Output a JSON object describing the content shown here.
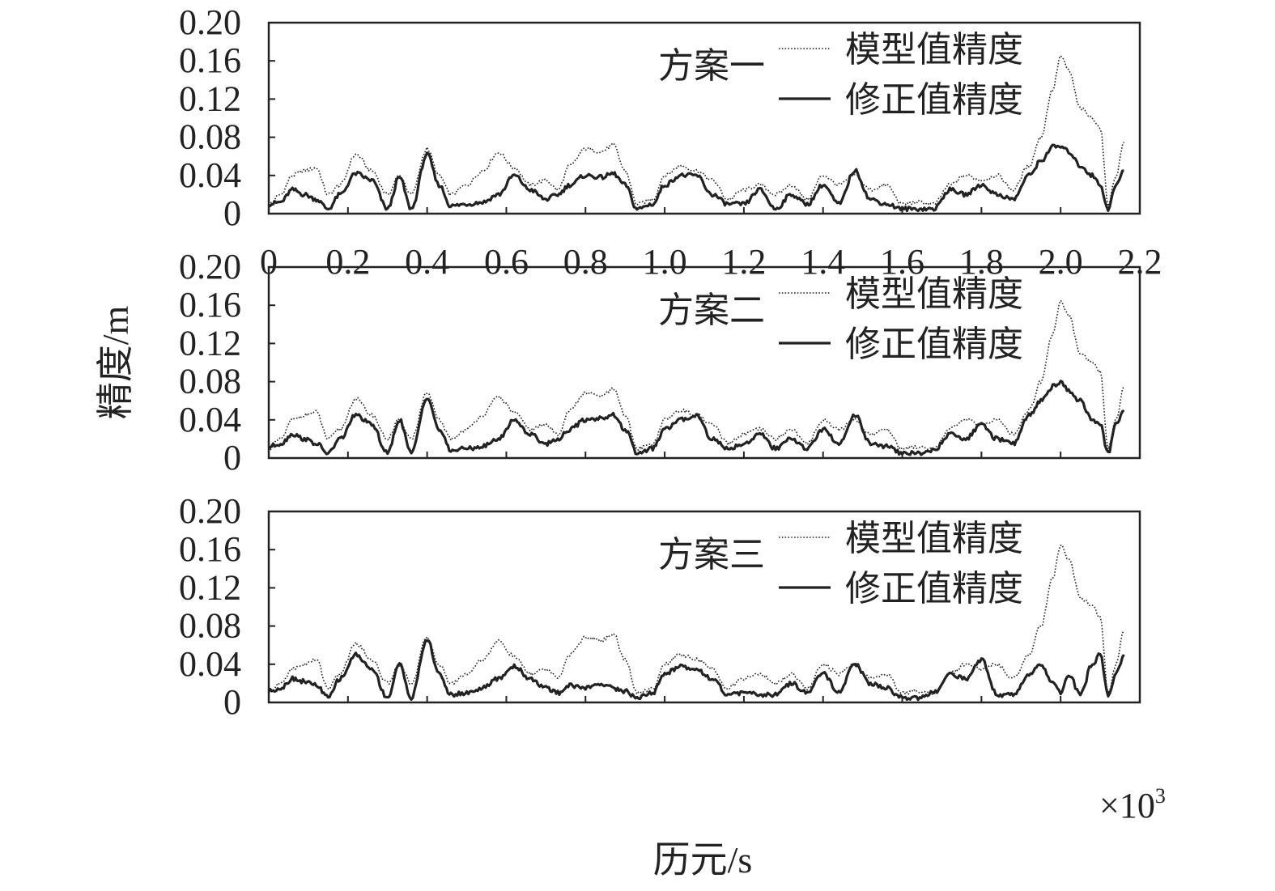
{
  "figure": {
    "ylabel": "精度/m",
    "xlabel": "历元/s",
    "x_multiplier": "×10",
    "x_multiplier_exp": "3"
  },
  "chart_data": [
    {
      "type": "line",
      "title": "方案一",
      "xlabel": "历元/s",
      "ylabel": "精度/m",
      "xlim": [
        0,
        2.2
      ],
      "ylim": [
        0,
        0.2
      ],
      "x_scale": "×10^3",
      "xticks": [
        0,
        0.2,
        0.4,
        0.6,
        0.8,
        1.0,
        1.2,
        1.4,
        1.6,
        1.8,
        2.0,
        2.2
      ],
      "yticks": [
        0,
        0.04,
        0.08,
        0.12,
        0.16,
        0.2
      ],
      "ytick_labels": [
        "0",
        "0.04",
        "0.08",
        "0.12",
        "0.16",
        "0.20"
      ],
      "xtick_labels": [
        "0",
        "0.2",
        "0.4",
        "0.6",
        "0.8",
        "1.0",
        "1.2",
        "1.4",
        "1.6",
        "1.8",
        "2.0",
        "2.2"
      ],
      "legend_position": "top-right",
      "series": [
        {
          "name": "模型值精度",
          "style": "dotted",
          "color": "#222222",
          "x": [
            0,
            0.03,
            0.06,
            0.09,
            0.12,
            0.15,
            0.18,
            0.22,
            0.26,
            0.3,
            0.33,
            0.36,
            0.4,
            0.43,
            0.46,
            0.5,
            0.54,
            0.58,
            0.62,
            0.66,
            0.7,
            0.73,
            0.76,
            0.8,
            0.84,
            0.87,
            0.9,
            0.93,
            0.97,
            1.0,
            1.04,
            1.08,
            1.12,
            1.16,
            1.2,
            1.24,
            1.28,
            1.32,
            1.36,
            1.4,
            1.44,
            1.48,
            1.52,
            1.56,
            1.6,
            1.64,
            1.68,
            1.72,
            1.76,
            1.8,
            1.84,
            1.88,
            1.92,
            1.95,
            1.98,
            2.0,
            2.02,
            2.05,
            2.08,
            2.1,
            2.12,
            2.14,
            2.16
          ],
          "y": [
            0.01,
            0.02,
            0.04,
            0.045,
            0.048,
            0.02,
            0.03,
            0.062,
            0.045,
            0.02,
            0.04,
            0.02,
            0.068,
            0.04,
            0.02,
            0.03,
            0.045,
            0.064,
            0.048,
            0.03,
            0.035,
            0.025,
            0.05,
            0.068,
            0.065,
            0.072,
            0.045,
            0.01,
            0.015,
            0.04,
            0.05,
            0.045,
            0.035,
            0.015,
            0.025,
            0.03,
            0.02,
            0.03,
            0.015,
            0.04,
            0.03,
            0.04,
            0.025,
            0.03,
            0.01,
            0.012,
            0.01,
            0.03,
            0.04,
            0.035,
            0.04,
            0.025,
            0.05,
            0.08,
            0.13,
            0.165,
            0.15,
            0.11,
            0.1,
            0.09,
            0.01,
            0.04,
            0.075
          ]
        },
        {
          "name": "修正值精度",
          "style": "solid",
          "color": "#222222",
          "x": [
            0,
            0.03,
            0.06,
            0.09,
            0.12,
            0.15,
            0.18,
            0.22,
            0.26,
            0.3,
            0.33,
            0.36,
            0.4,
            0.43,
            0.46,
            0.5,
            0.54,
            0.58,
            0.62,
            0.66,
            0.7,
            0.73,
            0.76,
            0.8,
            0.84,
            0.87,
            0.9,
            0.93,
            0.97,
            1.0,
            1.04,
            1.08,
            1.12,
            1.16,
            1.2,
            1.24,
            1.28,
            1.32,
            1.36,
            1.4,
            1.44,
            1.48,
            1.52,
            1.56,
            1.6,
            1.64,
            1.68,
            1.72,
            1.76,
            1.8,
            1.84,
            1.88,
            1.92,
            1.95,
            1.98,
            2.0,
            2.02,
            2.05,
            2.08,
            2.1,
            2.12,
            2.14,
            2.16
          ],
          "y": [
            0.01,
            0.012,
            0.025,
            0.02,
            0.015,
            0.005,
            0.02,
            0.042,
            0.035,
            0.005,
            0.038,
            0.005,
            0.062,
            0.03,
            0.008,
            0.01,
            0.012,
            0.02,
            0.04,
            0.025,
            0.015,
            0.02,
            0.03,
            0.04,
            0.038,
            0.042,
            0.03,
            0.005,
            0.01,
            0.03,
            0.04,
            0.04,
            0.02,
            0.01,
            0.01,
            0.025,
            0.005,
            0.02,
            0.01,
            0.03,
            0.01,
            0.045,
            0.015,
            0.01,
            0.005,
            0.005,
            0.005,
            0.025,
            0.02,
            0.03,
            0.02,
            0.015,
            0.04,
            0.055,
            0.07,
            0.07,
            0.065,
            0.05,
            0.04,
            0.03,
            0.005,
            0.03,
            0.045
          ]
        }
      ]
    },
    {
      "type": "line",
      "title": "方案二",
      "xlabel": "历元/s",
      "ylabel": "精度/m",
      "xlim": [
        0,
        2.2
      ],
      "ylim": [
        0,
        0.2
      ],
      "x_scale": "×10^3",
      "xticks": [
        0,
        0.2,
        0.4,
        0.6,
        0.8,
        1.0,
        1.2,
        1.4,
        1.6,
        1.8,
        2.0,
        2.2
      ],
      "yticks": [
        0,
        0.04,
        0.08,
        0.12,
        0.16,
        0.2
      ],
      "ytick_labels": [
        "0",
        "0.04",
        "0.08",
        "0.12",
        "0.16",
        "0.20"
      ],
      "legend_position": "top-right",
      "series": [
        {
          "name": "模型值精度",
          "style": "dotted",
          "color": "#222222",
          "x": [
            0,
            0.03,
            0.06,
            0.09,
            0.12,
            0.15,
            0.18,
            0.22,
            0.26,
            0.3,
            0.33,
            0.36,
            0.4,
            0.43,
            0.46,
            0.5,
            0.54,
            0.58,
            0.62,
            0.66,
            0.7,
            0.73,
            0.76,
            0.8,
            0.84,
            0.87,
            0.9,
            0.93,
            0.97,
            1.0,
            1.04,
            1.08,
            1.12,
            1.16,
            1.2,
            1.24,
            1.28,
            1.32,
            1.36,
            1.4,
            1.44,
            1.48,
            1.52,
            1.56,
            1.6,
            1.64,
            1.68,
            1.72,
            1.76,
            1.8,
            1.84,
            1.88,
            1.92,
            1.95,
            1.98,
            2.0,
            2.02,
            2.05,
            2.08,
            2.1,
            2.12,
            2.14,
            2.16
          ],
          "y": [
            0.01,
            0.02,
            0.04,
            0.045,
            0.048,
            0.02,
            0.03,
            0.062,
            0.045,
            0.02,
            0.04,
            0.02,
            0.068,
            0.04,
            0.02,
            0.03,
            0.045,
            0.064,
            0.048,
            0.03,
            0.035,
            0.025,
            0.05,
            0.068,
            0.065,
            0.072,
            0.045,
            0.01,
            0.015,
            0.04,
            0.05,
            0.045,
            0.035,
            0.015,
            0.025,
            0.03,
            0.02,
            0.03,
            0.015,
            0.04,
            0.03,
            0.04,
            0.025,
            0.03,
            0.01,
            0.012,
            0.01,
            0.03,
            0.04,
            0.035,
            0.04,
            0.025,
            0.05,
            0.08,
            0.13,
            0.165,
            0.15,
            0.11,
            0.1,
            0.09,
            0.01,
            0.04,
            0.075
          ]
        },
        {
          "name": "修正值精度",
          "style": "solid",
          "color": "#222222",
          "x": [
            0,
            0.03,
            0.06,
            0.09,
            0.12,
            0.15,
            0.18,
            0.22,
            0.26,
            0.3,
            0.33,
            0.36,
            0.4,
            0.43,
            0.46,
            0.5,
            0.54,
            0.58,
            0.62,
            0.66,
            0.7,
            0.73,
            0.76,
            0.8,
            0.84,
            0.87,
            0.9,
            0.93,
            0.97,
            1.0,
            1.04,
            1.08,
            1.12,
            1.16,
            1.2,
            1.24,
            1.28,
            1.32,
            1.36,
            1.4,
            1.44,
            1.48,
            1.52,
            1.56,
            1.6,
            1.64,
            1.68,
            1.72,
            1.76,
            1.8,
            1.84,
            1.88,
            1.92,
            1.95,
            1.98,
            2.0,
            2.02,
            2.05,
            2.08,
            2.1,
            2.12,
            2.14,
            2.16
          ],
          "y": [
            0.012,
            0.015,
            0.025,
            0.02,
            0.015,
            0.005,
            0.02,
            0.045,
            0.035,
            0.005,
            0.04,
            0.005,
            0.064,
            0.03,
            0.008,
            0.01,
            0.012,
            0.02,
            0.04,
            0.025,
            0.015,
            0.02,
            0.03,
            0.04,
            0.042,
            0.045,
            0.03,
            0.005,
            0.01,
            0.03,
            0.04,
            0.045,
            0.02,
            0.01,
            0.015,
            0.025,
            0.01,
            0.02,
            0.01,
            0.03,
            0.015,
            0.045,
            0.015,
            0.012,
            0.005,
            0.005,
            0.008,
            0.025,
            0.02,
            0.035,
            0.02,
            0.015,
            0.045,
            0.06,
            0.075,
            0.08,
            0.07,
            0.06,
            0.04,
            0.035,
            0.005,
            0.035,
            0.05
          ]
        }
      ]
    },
    {
      "type": "line",
      "title": "方案三",
      "xlabel": "历元/s",
      "ylabel": "精度/m",
      "xlim": [
        0,
        2.2
      ],
      "ylim": [
        0,
        0.2
      ],
      "x_scale": "×10^3",
      "xticks": [
        0,
        0.2,
        0.4,
        0.6,
        0.8,
        1.0,
        1.2,
        1.4,
        1.6,
        1.8,
        2.0,
        2.2
      ],
      "yticks": [
        0,
        0.04,
        0.08,
        0.12,
        0.16,
        0.2
      ],
      "ytick_labels": [
        "0",
        "0.04",
        "0.08",
        "0.12",
        "0.16",
        "0.20"
      ],
      "legend_position": "top-right",
      "series": [
        {
          "name": "模型值精度",
          "style": "dotted",
          "color": "#222222",
          "x": [
            0,
            0.03,
            0.06,
            0.09,
            0.12,
            0.15,
            0.18,
            0.22,
            0.26,
            0.3,
            0.33,
            0.36,
            0.4,
            0.43,
            0.46,
            0.5,
            0.54,
            0.58,
            0.62,
            0.66,
            0.7,
            0.73,
            0.76,
            0.8,
            0.84,
            0.87,
            0.9,
            0.93,
            0.97,
            1.0,
            1.04,
            1.08,
            1.12,
            1.16,
            1.2,
            1.24,
            1.28,
            1.32,
            1.36,
            1.4,
            1.44,
            1.48,
            1.52,
            1.56,
            1.6,
            1.64,
            1.68,
            1.72,
            1.76,
            1.8,
            1.84,
            1.88,
            1.92,
            1.95,
            1.98,
            2.0,
            2.02,
            2.05,
            2.08,
            2.1,
            2.12,
            2.14,
            2.16
          ],
          "y": [
            0.01,
            0.02,
            0.035,
            0.04,
            0.045,
            0.015,
            0.03,
            0.062,
            0.045,
            0.02,
            0.04,
            0.02,
            0.068,
            0.04,
            0.02,
            0.03,
            0.045,
            0.064,
            0.048,
            0.03,
            0.035,
            0.025,
            0.05,
            0.068,
            0.065,
            0.072,
            0.045,
            0.01,
            0.015,
            0.04,
            0.05,
            0.045,
            0.035,
            0.015,
            0.025,
            0.03,
            0.02,
            0.03,
            0.015,
            0.04,
            0.03,
            0.04,
            0.025,
            0.03,
            0.01,
            0.012,
            0.01,
            0.03,
            0.04,
            0.035,
            0.04,
            0.025,
            0.05,
            0.08,
            0.13,
            0.165,
            0.15,
            0.11,
            0.1,
            0.09,
            0.01,
            0.04,
            0.075
          ]
        },
        {
          "name": "修正值精度",
          "style": "solid",
          "color": "#222222",
          "x": [
            0,
            0.03,
            0.06,
            0.09,
            0.12,
            0.15,
            0.18,
            0.22,
            0.26,
            0.3,
            0.33,
            0.36,
            0.4,
            0.43,
            0.46,
            0.5,
            0.54,
            0.58,
            0.62,
            0.66,
            0.7,
            0.73,
            0.76,
            0.8,
            0.84,
            0.87,
            0.9,
            0.93,
            0.97,
            1.0,
            1.04,
            1.08,
            1.12,
            1.16,
            1.2,
            1.24,
            1.28,
            1.32,
            1.36,
            1.4,
            1.44,
            1.48,
            1.52,
            1.56,
            1.6,
            1.64,
            1.68,
            1.72,
            1.76,
            1.8,
            1.84,
            1.88,
            1.92,
            1.95,
            1.98,
            2.0,
            2.02,
            2.05,
            2.08,
            2.1,
            2.12,
            2.14,
            2.16
          ],
          "y": [
            0.012,
            0.015,
            0.025,
            0.022,
            0.018,
            0.005,
            0.025,
            0.05,
            0.035,
            0.005,
            0.04,
            0.005,
            0.066,
            0.03,
            0.008,
            0.01,
            0.015,
            0.025,
            0.038,
            0.025,
            0.015,
            0.01,
            0.018,
            0.015,
            0.02,
            0.015,
            0.012,
            0.005,
            0.01,
            0.03,
            0.038,
            0.035,
            0.025,
            0.008,
            0.01,
            0.008,
            0.008,
            0.02,
            0.01,
            0.03,
            0.01,
            0.04,
            0.02,
            0.015,
            0.005,
            0.005,
            0.01,
            0.03,
            0.025,
            0.045,
            0.008,
            0.008,
            0.03,
            0.04,
            0.02,
            0.01,
            0.03,
            0.008,
            0.04,
            0.05,
            0.008,
            0.03,
            0.05
          ]
        }
      ]
    }
  ]
}
